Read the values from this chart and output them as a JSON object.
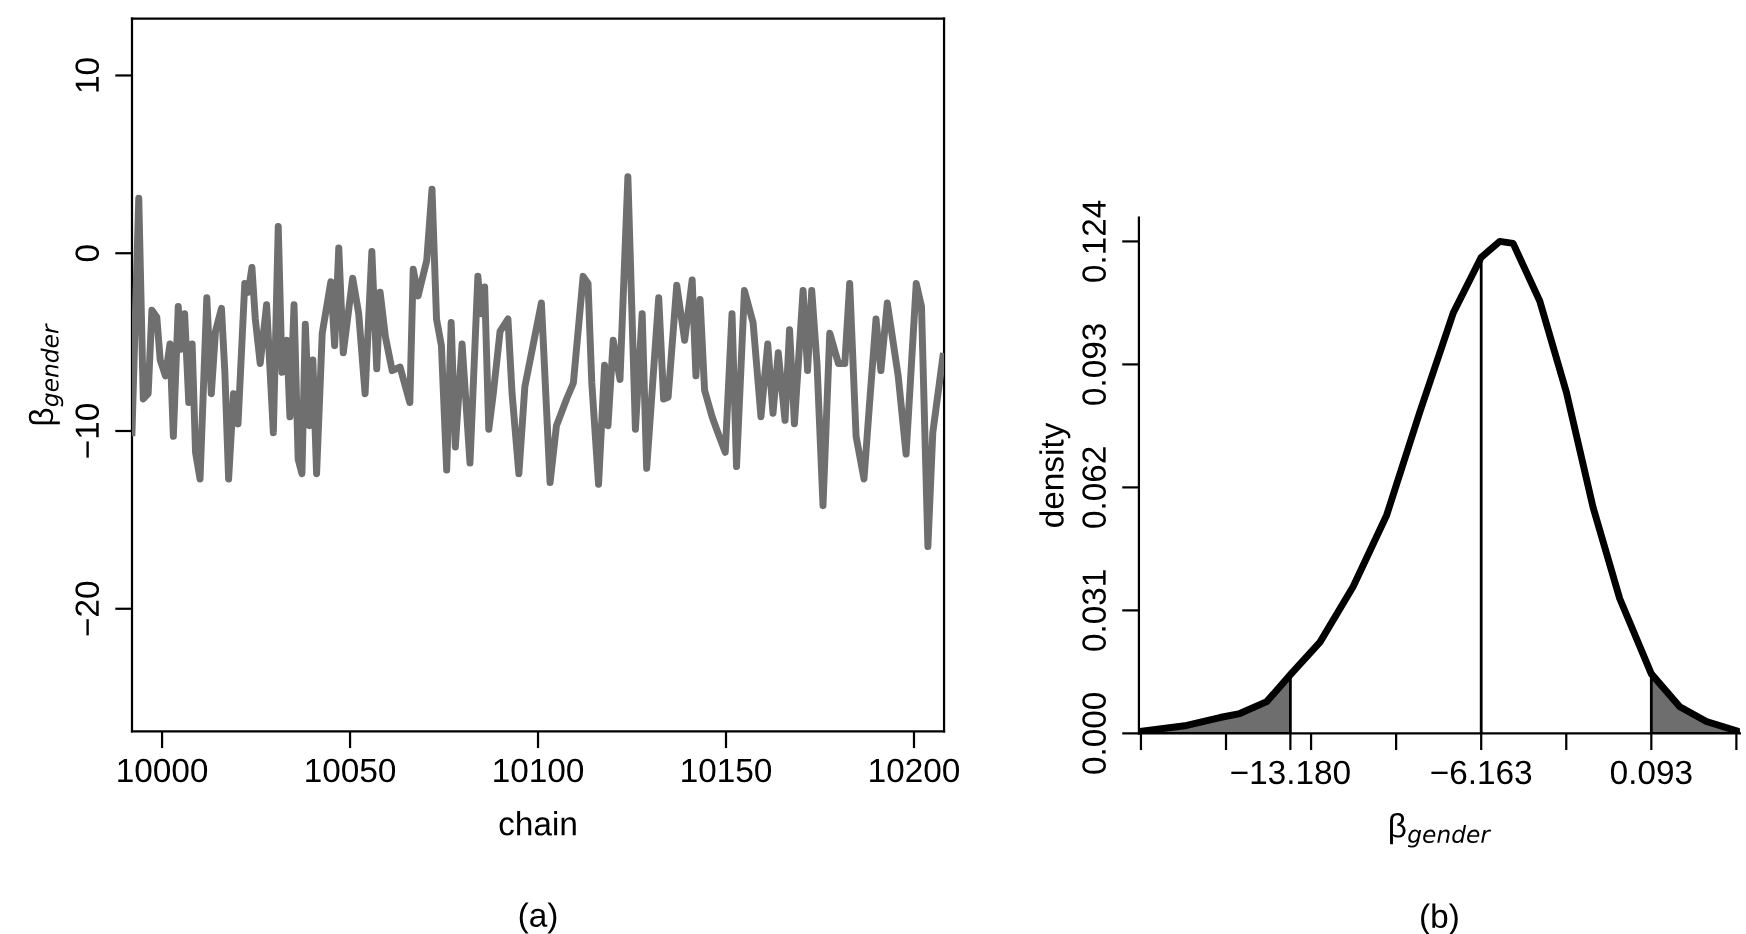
{
  "chart_data": [
    {
      "type": "line",
      "xlabel": "chain",
      "ylabel": "β$_{gender}$",
      "annotations": [
        "(a)"
      ],
      "xlim": [
        9992,
        10208
      ],
      "ylim": [
        -26.9,
        13.2
      ],
      "xticks": [
        10000,
        10050,
        10100,
        10150,
        10200
      ],
      "yticks": [
        {
          "value": -20,
          "label": "−20"
        },
        {
          "value": -10,
          "label": "−10"
        },
        0,
        10
      ],
      "grid": false,
      "legend": false,
      "marker": "none",
      "line_style": "solid",
      "series": [
        {
          "color": "#6f6f6f",
          "x": [
            9992,
            9993.8,
            9995,
            9996.3,
            9997.3,
            9998.6,
            9999.5,
            10000.9,
            10002.1,
            10003,
            10004.3,
            10005.1,
            10006,
            10007.1,
            10008,
            10008.9,
            10010.1,
            10011.9,
            10013.1,
            10014.2,
            10015.8,
            10016.7,
            10017.7,
            10019,
            10020.2,
            10022,
            10022.9,
            10023.9,
            10024.8,
            10026.1,
            10027.8,
            10029.6,
            10030.9,
            10031.9,
            10033.2,
            10034,
            10035.1,
            10036.2,
            10037.2,
            10038.1,
            10039.2,
            10040.1,
            10041.1,
            10042.6,
            10044.9,
            10045.9,
            10047,
            10048.2,
            10050.7,
            10052.3,
            10054,
            10055.8,
            10057.1,
            10058,
            10059.4,
            10061.2,
            10063.3,
            10065.9,
            10066.8,
            10068.1,
            10070.4,
            10071.8,
            10073,
            10074.3,
            10075.7,
            10076.9,
            10078,
            10079.8,
            10081.9,
            10084,
            10084.9,
            10085.8,
            10086.9,
            10088.1,
            10089.9,
            10092,
            10093.1,
            10094.9,
            10096.5,
            10100.9,
            10103.2,
            10104.9,
            10107.6,
            10109.4,
            10112,
            10113.3,
            10114.3,
            10116.1,
            10117.7,
            10118.6,
            10120,
            10121.8,
            10123.9,
            10125.9,
            10127.7,
            10128.9,
            10130.7,
            10132.1,
            10133.4,
            10134.6,
            10136.9,
            10139,
            10141,
            10142,
            10143.1,
            10144.3,
            10146.3,
            10147.5,
            10149.8,
            10151.6,
            10152.8,
            10154.9,
            10157.2,
            10159.3,
            10161.1,
            10162.5,
            10163.9,
            10165.7,
            10166.9,
            10168.2,
            10170.5,
            10171.7,
            10172.8,
            10174.2,
            10175.8,
            10177.6,
            10179.9,
            10181.6,
            10182.9,
            10184.6,
            10186.7,
            10188.2,
            10189.9,
            10191.2,
            10192.9,
            10195.8,
            10197.9,
            10200.6,
            10202,
            10203.7,
            10205,
            10207.7
          ],
          "values": [
            -10.1,
            3.1,
            -8.2,
            -7.9,
            -3.2,
            -3.6,
            -6.0,
            -6.9,
            -5.1,
            -10.3,
            -3.0,
            -5.4,
            -3.4,
            -8.4,
            -5.1,
            -11.2,
            -12.7,
            -2.5,
            -7.9,
            -4.4,
            -3.1,
            -6.7,
            -12.7,
            -7.9,
            -9.6,
            -1.7,
            -2.2,
            -0.8,
            -3.7,
            -6.2,
            -2.9,
            -10.1,
            1.5,
            -6.7,
            -4.9,
            -9.2,
            -2.9,
            -11.6,
            -12.4,
            -4.0,
            -9.7,
            -6.0,
            -12.4,
            -4.5,
            -1.6,
            -5.2,
            0.3,
            -5.6,
            -1.4,
            -3.4,
            -7.9,
            0.1,
            -6.5,
            -2.2,
            -4.7,
            -6.6,
            -6.4,
            -8.4,
            -0.9,
            -2.4,
            -0.4,
            3.6,
            -3.7,
            -5.2,
            -12.2,
            -3.9,
            -10.9,
            -5.1,
            -11.8,
            -1.3,
            -3.4,
            -1.9,
            -9.9,
            -7.9,
            -4.4,
            -3.7,
            -7.9,
            -12.4,
            -7.5,
            -2.8,
            -12.9,
            -9.7,
            -8.2,
            -7.3,
            -1.3,
            -1.7,
            -7.3,
            -13.0,
            -6.3,
            -9.7,
            -4.9,
            -7.1,
            4.3,
            -9.9,
            -3.4,
            -12.1,
            -6.7,
            -2.5,
            -8.2,
            -8.1,
            -1.8,
            -4.9,
            -1.5,
            -6.9,
            -2.6,
            -7.7,
            -9.2,
            -9.9,
            -11.2,
            -3.4,
            -12.0,
            -2.1,
            -3.9,
            -9.2,
            -5.1,
            -9.0,
            -5.6,
            -9.4,
            -4.3,
            -9.6,
            -2.1,
            -6.6,
            -2.1,
            -6.2,
            -14.2,
            -4.5,
            -6.2,
            -6.2,
            -1.7,
            -10.3,
            -12.7,
            -8.4,
            -3.7,
            -6.6,
            -2.8,
            -6.9,
            -11.3,
            -1.7,
            -3.0,
            -16.5,
            -10.1,
            -5.8
          ]
        }
      ]
    },
    {
      "type": "line",
      "xlabel": "β$_{gender}$",
      "ylabel": "density",
      "annotations": [
        "(b)"
      ],
      "xlim": [
        -18.75,
        3.35
      ],
      "ylim": [
        0,
        0.13
      ],
      "xticks": [
        {
          "value": -18.675,
          "label": null
        },
        {
          "value": -15.547,
          "label": null
        },
        {
          "value": -13.18,
          "label": "−13.180"
        },
        {
          "value": -12.419,
          "label": null
        },
        {
          "value": -9.291,
          "label": null
        },
        {
          "value": -6.163,
          "label": "−6.163"
        },
        {
          "value": -3.035,
          "label": null
        },
        {
          "value": 0.093,
          "label": "0.093"
        },
        {
          "value": 3.221,
          "label": null
        }
      ],
      "yticks": [
        {
          "value": 0,
          "label": "0.000"
        },
        {
          "value": 0.031,
          "label": "0.031"
        },
        {
          "value": 0.062,
          "label": "0.062"
        },
        {
          "value": 0.093,
          "label": "0.093"
        },
        {
          "value": 0.124,
          "label": "0.124"
        }
      ],
      "grid": false,
      "legend": false,
      "marker": "none",
      "line_style": "solid",
      "ref_lines": [
        {
          "axis": "x",
          "value": -6.163,
          "color": "#000000"
        }
      ],
      "series": [
        {
          "type": "area",
          "color": "#6e6e6e",
          "x": [
            -18.71,
            -16.99,
            -15.77,
            -15.04,
            -14.05,
            -13.18
          ],
          "values": [
            0.0005,
            0.002,
            0.004,
            0.005,
            0.008,
            0.0148
          ]
        },
        {
          "type": "area",
          "color": "#6e6e6e",
          "x": [
            0.093,
            1.14,
            2.12,
            3.3
          ],
          "values": [
            0.015,
            0.0067,
            0.003,
            0.0005
          ]
        },
        {
          "type": "line",
          "color": "#000000",
          "x": [
            -18.71,
            -16.99,
            -15.77,
            -15.04,
            -14.05,
            -13.18,
            -12.09,
            -10.87,
            -9.64,
            -8.42,
            -7.19,
            -6.163,
            -5.48,
            -4.99,
            -4.01,
            -3.03,
            -2.05,
            -1.07,
            0.093,
            1.14,
            2.12,
            3.3
          ],
          "values": [
            0.0005,
            0.002,
            0.004,
            0.005,
            0.008,
            0.0148,
            0.023,
            0.037,
            0.055,
            0.081,
            0.106,
            0.12,
            0.124,
            0.1235,
            0.109,
            0.086,
            0.057,
            0.034,
            0.015,
            0.0067,
            0.003,
            0.0005
          ]
        }
      ]
    }
  ]
}
